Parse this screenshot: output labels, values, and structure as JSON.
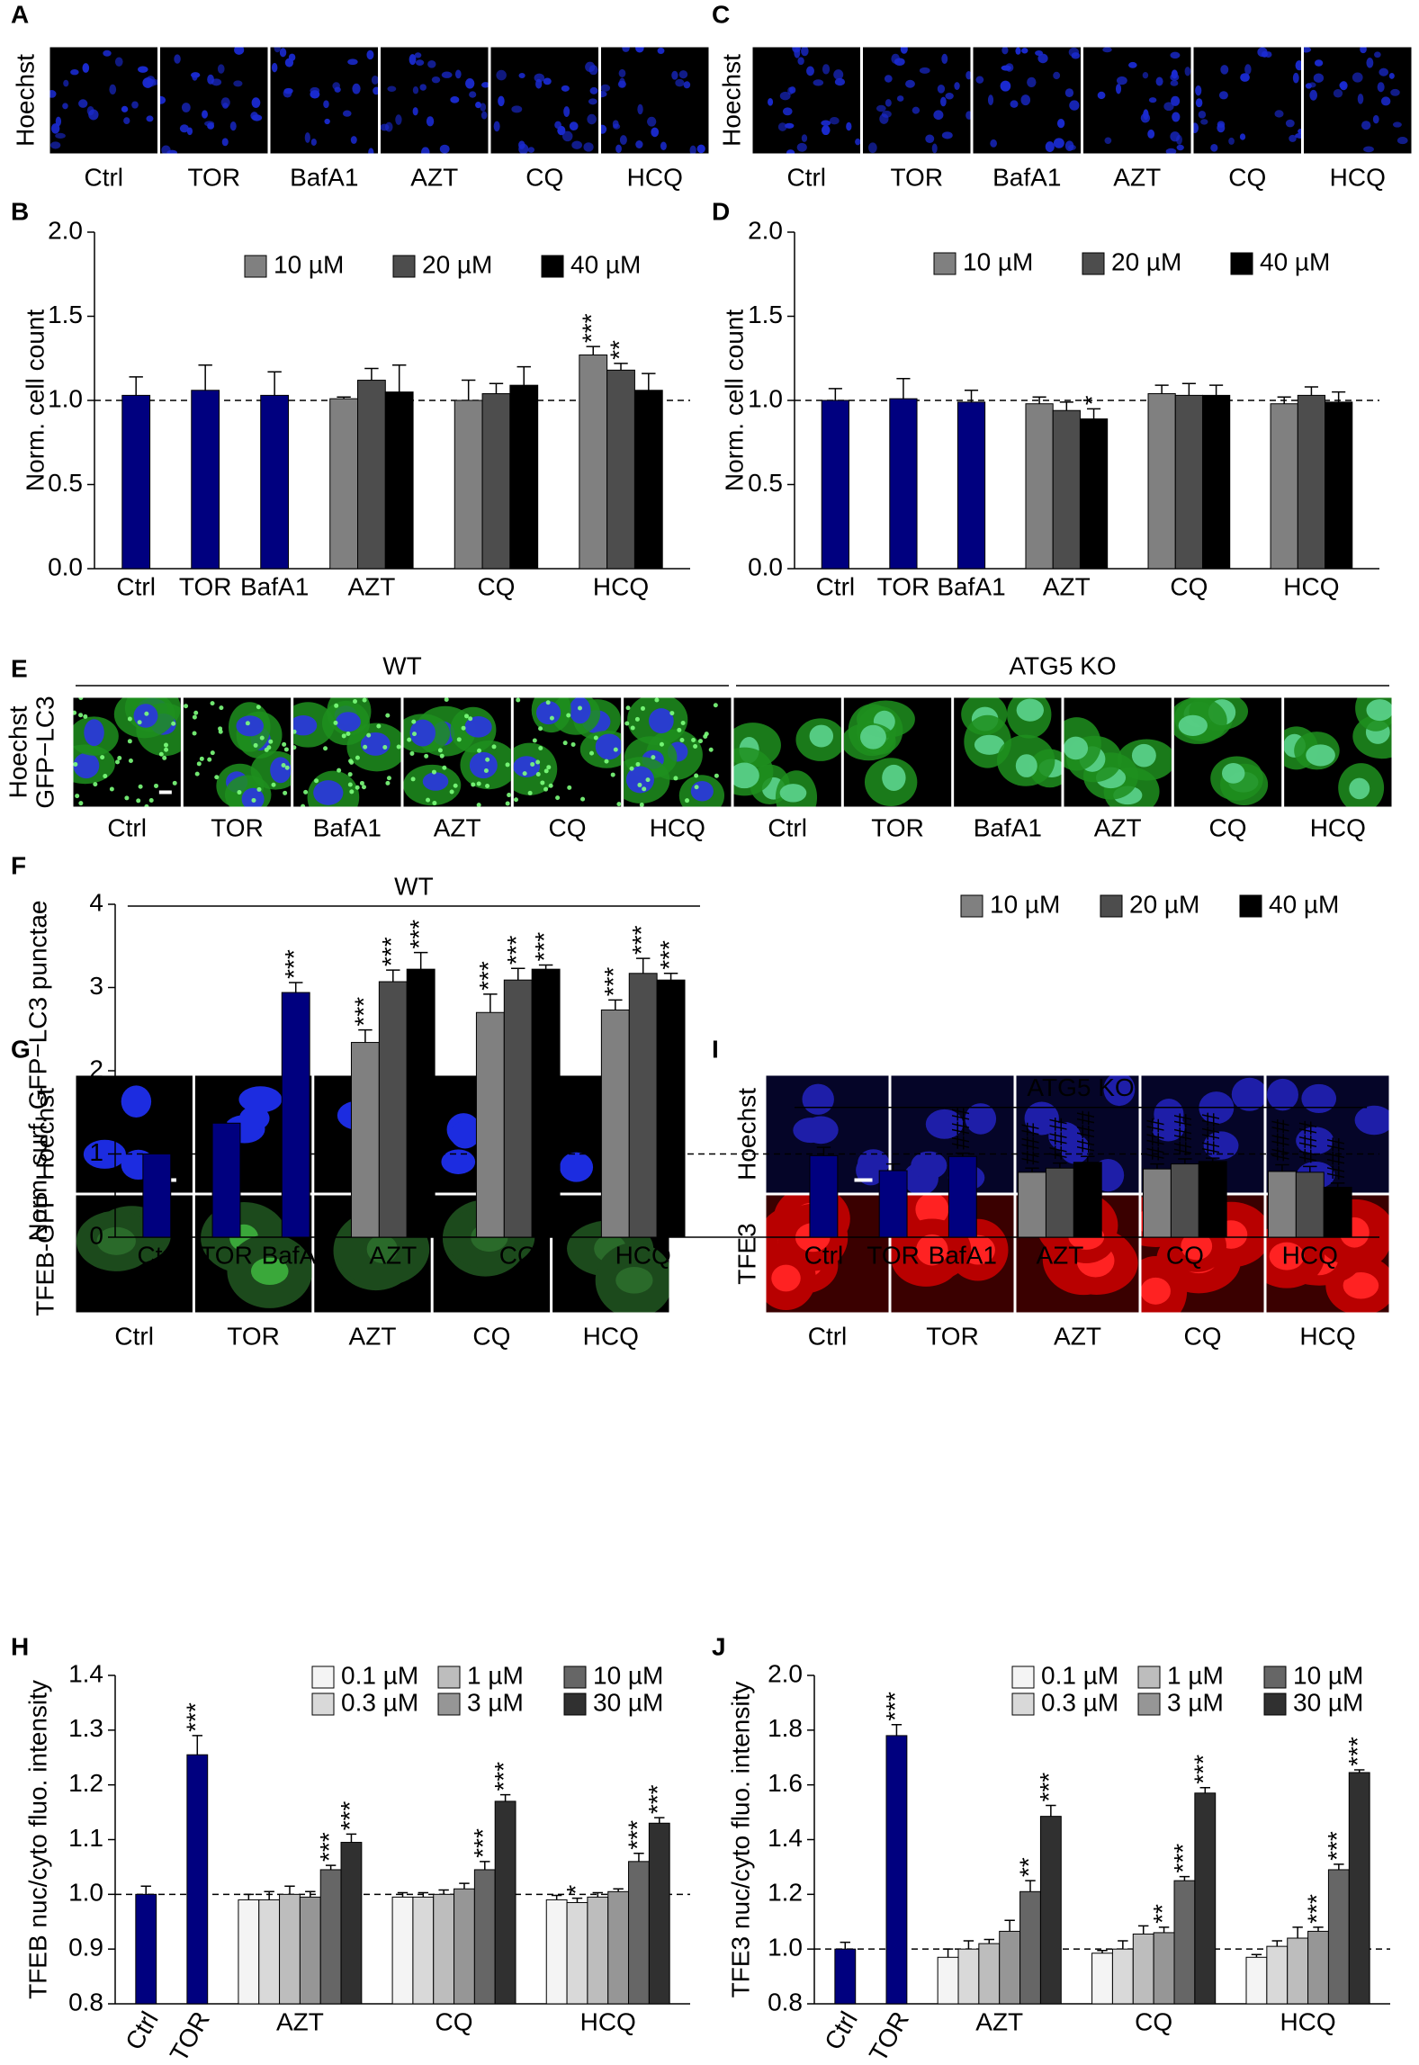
{
  "image_panels": [
    {
      "panel": "A",
      "row_labels": [
        "Hoechst"
      ],
      "row_colors": [
        "#1a1aff"
      ],
      "labels": [
        "Ctrl",
        "TOR",
        "BafA1",
        "AZT",
        "CQ",
        "HCQ"
      ]
    },
    {
      "panel": "C",
      "row_labels": [
        "Hoechst"
      ],
      "row_colors": [
        "#1a1aff"
      ],
      "labels": [
        "Ctrl",
        "TOR",
        "BafA1",
        "AZT",
        "CQ",
        "HCQ"
      ]
    },
    {
      "panel": "E",
      "row_labels": [
        "Hoechst",
        "GFP−LC3"
      ],
      "row_colors": [
        "#1a1aff",
        "#22cc22"
      ],
      "group_labels": [
        "WT",
        "ATG5 KO"
      ],
      "labels": [
        "Ctrl",
        "TOR",
        "BafA1",
        "AZT",
        "CQ",
        "HCQ",
        "Ctrl",
        "TOR",
        "BafA1",
        "AZT",
        "CQ",
        "HCQ"
      ]
    },
    {
      "panel": "G",
      "row_labels": [
        "Hoechst",
        "TFEB-GFP"
      ],
      "row_colors": [
        "#1a1aff",
        "#22cc22"
      ],
      "labels": [
        "Ctrl",
        "TOR",
        "AZT",
        "CQ",
        "HCQ"
      ]
    },
    {
      "panel": "I",
      "row_labels": [
        "Hoechst",
        "TFE3"
      ],
      "row_colors": [
        "#1a1aff",
        "#ee1111"
      ],
      "labels": [
        "Ctrl",
        "TOR",
        "AZT",
        "CQ",
        "HCQ"
      ]
    }
  ],
  "chart_data": [
    {
      "type": "bar",
      "panel": "B",
      "ylabel": "Norm. cell count",
      "categories": [
        "Ctrl",
        "TOR",
        "BafA1",
        "AZT",
        "CQ",
        "HCQ"
      ],
      "ylim": [
        0,
        2
      ],
      "yticks": [
        {
          "value": 0,
          "label": "0.0"
        },
        0.5,
        {
          "value": 1,
          "label": "1.0"
        },
        1.5,
        {
          "value": 2,
          "label": "2.0"
        }
      ],
      "ref_line": 1,
      "legend": "upper right",
      "series": [
        {
          "color": "#00007f",
          "values": [
            1.03,
            1.06,
            1.03,
            null,
            null,
            null
          ],
          "errors": [
            0.11,
            0.15,
            0.14,
            null,
            null,
            null
          ]
        },
        {
          "name": "10 µM",
          "color": "#808080",
          "values": [
            null,
            null,
            null,
            1.01,
            1.0,
            1.27
          ],
          "errors": [
            null,
            null,
            null,
            0.01,
            0.12,
            0.05
          ],
          "annotations": [
            null,
            null,
            null,
            null,
            null,
            "***"
          ]
        },
        {
          "name": "20 µM",
          "color": "#4d4d4d",
          "values": [
            null,
            null,
            null,
            1.12,
            1.04,
            1.18
          ],
          "errors": [
            null,
            null,
            null,
            0.07,
            0.06,
            0.04
          ],
          "annotations": [
            null,
            null,
            null,
            null,
            null,
            "**"
          ]
        },
        {
          "name": "40 µM",
          "color": "#000000",
          "values": [
            null,
            null,
            null,
            1.05,
            1.09,
            1.06
          ],
          "errors": [
            null,
            null,
            null,
            0.16,
            0.11,
            0.1
          ]
        }
      ]
    },
    {
      "type": "bar",
      "panel": "D",
      "ylabel": "Norm. cell count",
      "categories": [
        "Ctrl",
        "TOR",
        "BafA1",
        "AZT",
        "CQ",
        "HCQ"
      ],
      "ylim": [
        0,
        2
      ],
      "yticks": [
        {
          "value": 0,
          "label": "0.0"
        },
        0.5,
        {
          "value": 1,
          "label": "1.0"
        },
        1.5,
        {
          "value": 2,
          "label": "2.0"
        }
      ],
      "ref_line": 1,
      "legend": "upper right",
      "series": [
        {
          "color": "#00007f",
          "values": [
            1.0,
            1.01,
            0.99,
            null,
            null,
            null
          ],
          "errors": [
            0.07,
            0.12,
            0.07,
            null,
            null,
            null
          ]
        },
        {
          "name": "10 µM",
          "color": "#808080",
          "values": [
            null,
            null,
            null,
            0.98,
            1.04,
            0.98
          ],
          "errors": [
            null,
            null,
            null,
            0.04,
            0.05,
            0.04
          ]
        },
        {
          "name": "20 µM",
          "color": "#4d4d4d",
          "values": [
            null,
            null,
            null,
            0.94,
            1.03,
            1.03
          ],
          "errors": [
            null,
            null,
            null,
            0.05,
            0.07,
            0.05
          ]
        },
        {
          "name": "40 µM",
          "color": "#000000",
          "values": [
            null,
            null,
            null,
            0.89,
            1.03,
            0.99
          ],
          "errors": [
            null,
            null,
            null,
            0.06,
            0.06,
            0.06
          ],
          "annotations": [
            null,
            null,
            null,
            "*",
            null,
            null
          ]
        }
      ]
    },
    {
      "type": "bar",
      "panel": "F",
      "ylabel": "Norm. surf. GFP−LC3 punctae",
      "group_labels": [
        "WT",
        "ATG5 KO"
      ],
      "categories": [
        "Ctrl",
        "TOR",
        "BafA1",
        "AZT",
        "CQ",
        "HCQ",
        "Ctrl",
        "TOR",
        "BafA1",
        "AZT",
        "CQ",
        "HCQ"
      ],
      "ylim": [
        0,
        4
      ],
      "yticks": [
        0,
        1,
        2,
        3,
        4
      ],
      "ref_line": 1,
      "legend": "upper right",
      "series": [
        {
          "color": "#00007f",
          "values": [
            1.0,
            1.37,
            2.94,
            null,
            null,
            null,
            0.98,
            0.8,
            0.97,
            null,
            null,
            null
          ],
          "errors": [
            0.06,
            0.1,
            0.12,
            null,
            null,
            null,
            0.1,
            0.08,
            0.04,
            null,
            null,
            null
          ],
          "annotations": [
            null,
            "***",
            "***",
            null,
            null,
            null,
            null,
            null,
            "###",
            null,
            null,
            null
          ]
        },
        {
          "name": "10 µM",
          "color": "#808080",
          "values": [
            null,
            null,
            null,
            2.34,
            2.7,
            2.73,
            null,
            null,
            null,
            0.78,
            0.82,
            0.79
          ],
          "errors": [
            null,
            null,
            null,
            0.15,
            0.22,
            0.12,
            null,
            null,
            null,
            0.05,
            0.06,
            0.08
          ],
          "annotations": [
            null,
            null,
            null,
            "***",
            "***",
            "***",
            null,
            null,
            null,
            "###",
            "###",
            "###"
          ]
        },
        {
          "name": "20 µM",
          "color": "#4d4d4d",
          "values": [
            null,
            null,
            null,
            3.07,
            3.09,
            3.17,
            null,
            null,
            null,
            0.83,
            0.88,
            0.78
          ],
          "errors": [
            null,
            null,
            null,
            0.14,
            0.14,
            0.18,
            null,
            null,
            null,
            0.06,
            0.06,
            0.07
          ],
          "annotations": [
            null,
            null,
            null,
            "***",
            "***",
            "***",
            null,
            null,
            null,
            "###",
            "###",
            "###"
          ]
        },
        {
          "name": "40 µM",
          "color": "#000000",
          "values": [
            null,
            null,
            null,
            3.22,
            3.22,
            3.09,
            null,
            null,
            null,
            0.9,
            0.91,
            0.6
          ],
          "errors": [
            null,
            null,
            null,
            0.2,
            0.05,
            0.08,
            null,
            null,
            null,
            0.07,
            0.04,
            0.05
          ],
          "annotations": [
            null,
            null,
            null,
            "***",
            "***",
            "***",
            null,
            null,
            null,
            "###",
            "###",
            "###"
          ]
        }
      ]
    },
    {
      "type": "bar",
      "panel": "H",
      "ylabel": "TFEB nuc/cyto fluo. intensity",
      "categories": [
        "Ctrl",
        "TOR",
        "AZT",
        "CQ",
        "HCQ"
      ],
      "ylim": [
        0.8,
        1.4
      ],
      "yticks": [
        0.8,
        0.9,
        {
          "value": 1,
          "label": "1.0"
        },
        1.1,
        1.2,
        1.3,
        1.4
      ],
      "ref_line": 1,
      "legend": "upper right",
      "series": [
        {
          "color": "#00007f",
          "values": [
            1.0,
            1.255,
            null,
            null,
            null
          ],
          "errors": [
            0.015,
            0.035,
            null,
            null,
            null
          ],
          "annotations": [
            null,
            "***",
            null,
            null,
            null
          ]
        },
        {
          "name": "0.1 µM",
          "color": "#f4f4f4",
          "values": [
            null,
            null,
            0.99,
            0.995,
            0.99
          ],
          "errors": [
            null,
            null,
            0.01,
            0.008,
            0.008
          ]
        },
        {
          "name": "0.3 µM",
          "color": "#d9d9d9",
          "values": [
            null,
            null,
            0.99,
            0.995,
            0.985
          ],
          "errors": [
            null,
            null,
            0.015,
            0.008,
            0.008
          ],
          "annotations": [
            null,
            null,
            null,
            null,
            "*"
          ]
        },
        {
          "name": "1 µM",
          "color": "#bdbdbd",
          "values": [
            null,
            null,
            1.0,
            1.0,
            0.995
          ],
          "errors": [
            null,
            null,
            0.015,
            0.008,
            0.008
          ]
        },
        {
          "name": "3 µM",
          "color": "#969696",
          "values": [
            null,
            null,
            0.995,
            1.01,
            1.005
          ],
          "errors": [
            null,
            null,
            0.01,
            0.01,
            0.005
          ]
        },
        {
          "name": "10 µM",
          "color": "#666666",
          "values": [
            null,
            null,
            1.045,
            1.045,
            1.06
          ],
          "errors": [
            null,
            null,
            0.008,
            0.015,
            0.015
          ],
          "annotations": [
            null,
            null,
            "***",
            "***",
            "***"
          ]
        },
        {
          "name": "30 µM",
          "color": "#303030",
          "values": [
            null,
            null,
            1.095,
            1.17,
            1.13
          ],
          "errors": [
            null,
            null,
            0.015,
            0.012,
            0.01
          ],
          "annotations": [
            null,
            null,
            "***",
            "***",
            "***"
          ]
        }
      ]
    },
    {
      "type": "bar",
      "panel": "J",
      "ylabel": "TFE3 nuc/cyto fluo. intensity",
      "categories": [
        "Ctrl",
        "TOR",
        "AZT",
        "CQ",
        "HCQ"
      ],
      "ylim": [
        0.8,
        2.0
      ],
      "yticks": [
        0.8,
        {
          "value": 1,
          "label": "1.0"
        },
        1.2,
        1.4,
        1.6,
        1.8,
        {
          "value": 2,
          "label": "2.0"
        }
      ],
      "ref_line": 1,
      "legend": "upper right",
      "series": [
        {
          "color": "#00007f",
          "values": [
            1.0,
            1.78,
            null,
            null,
            null
          ],
          "errors": [
            0.025,
            0.04,
            null,
            null,
            null
          ],
          "annotations": [
            null,
            "***",
            null,
            null,
            null
          ]
        },
        {
          "name": "0.1 µM",
          "color": "#f4f4f4",
          "values": [
            null,
            null,
            0.97,
            0.985,
            0.97
          ],
          "errors": [
            null,
            null,
            0.03,
            0.01,
            0.01
          ]
        },
        {
          "name": "0.3 µM",
          "color": "#d9d9d9",
          "values": [
            null,
            null,
            1.0,
            1.0,
            1.01
          ],
          "errors": [
            null,
            null,
            0.03,
            0.03,
            0.02
          ]
        },
        {
          "name": "1 µM",
          "color": "#bdbdbd",
          "values": [
            null,
            null,
            1.02,
            1.055,
            1.04
          ],
          "errors": [
            null,
            null,
            0.015,
            0.03,
            0.04
          ]
        },
        {
          "name": "3 µM",
          "color": "#969696",
          "values": [
            null,
            null,
            1.065,
            1.06,
            1.065
          ],
          "errors": [
            null,
            null,
            0.04,
            0.02,
            0.015
          ],
          "annotations": [
            null,
            null,
            null,
            "**",
            "***"
          ]
        },
        {
          "name": "10 µM",
          "color": "#666666",
          "values": [
            null,
            null,
            1.21,
            1.25,
            1.29
          ],
          "errors": [
            null,
            null,
            0.04,
            0.015,
            0.02
          ],
          "annotations": [
            null,
            null,
            "**",
            "***",
            "***"
          ]
        },
        {
          "name": "30 µM",
          "color": "#303030",
          "values": [
            null,
            null,
            1.485,
            1.57,
            1.645
          ],
          "errors": [
            null,
            null,
            0.04,
            0.02,
            0.01
          ],
          "annotations": [
            null,
            null,
            "***",
            "***",
            "***"
          ]
        }
      ]
    }
  ]
}
